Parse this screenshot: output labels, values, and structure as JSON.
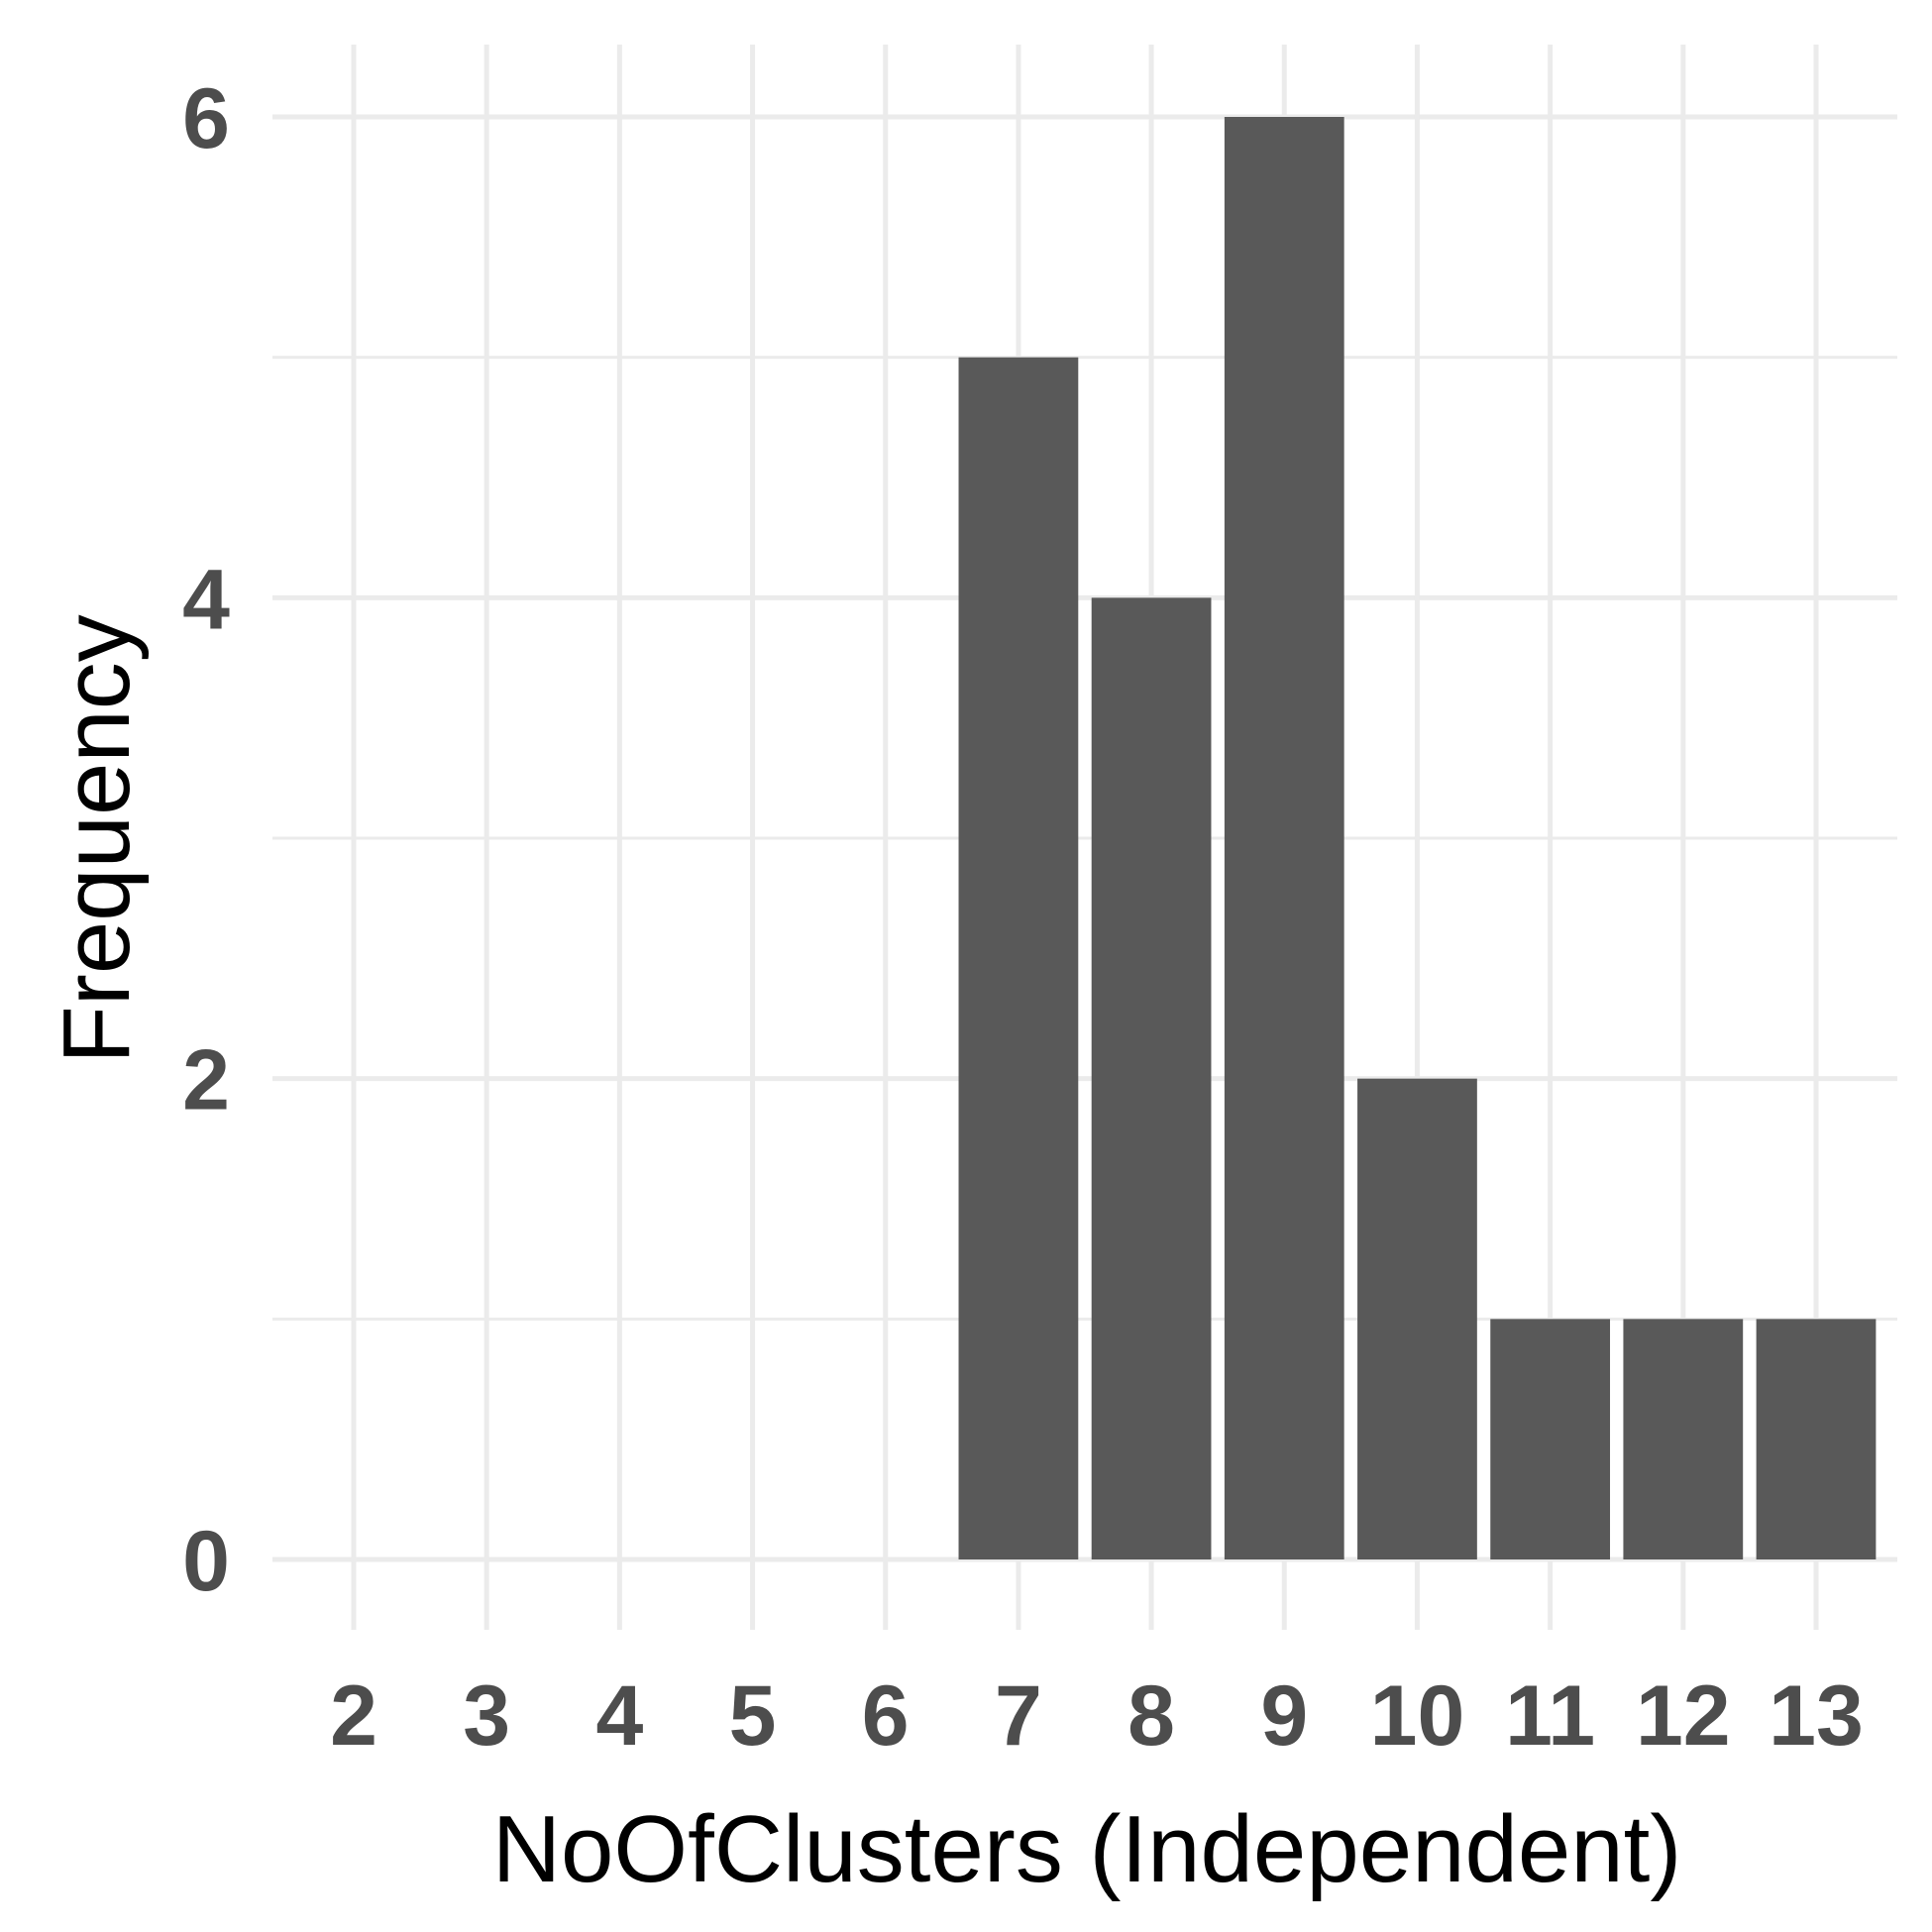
{
  "chart_data": {
    "type": "bar",
    "title": "",
    "xlabel": "NoOfClusters (Independent)",
    "ylabel": "Frequency",
    "categories": [
      "2",
      "3",
      "4",
      "5",
      "6",
      "7",
      "8",
      "9",
      "10",
      "11",
      "12",
      "13"
    ],
    "x": [
      7,
      8,
      9,
      10,
      11,
      12,
      13
    ],
    "values": [
      5,
      4,
      6,
      2,
      1,
      1,
      1
    ],
    "xlim": [
      1.4,
      13.6
    ],
    "ylim": [
      0,
      6.2
    ],
    "y_ticks": [
      0,
      2,
      4,
      6
    ],
    "grid": true,
    "legend": "none",
    "colors": {
      "bar": "#595959",
      "grid": "#ebebeb",
      "tick_label": "#4d4d4d",
      "axis_title": "#000000"
    }
  }
}
